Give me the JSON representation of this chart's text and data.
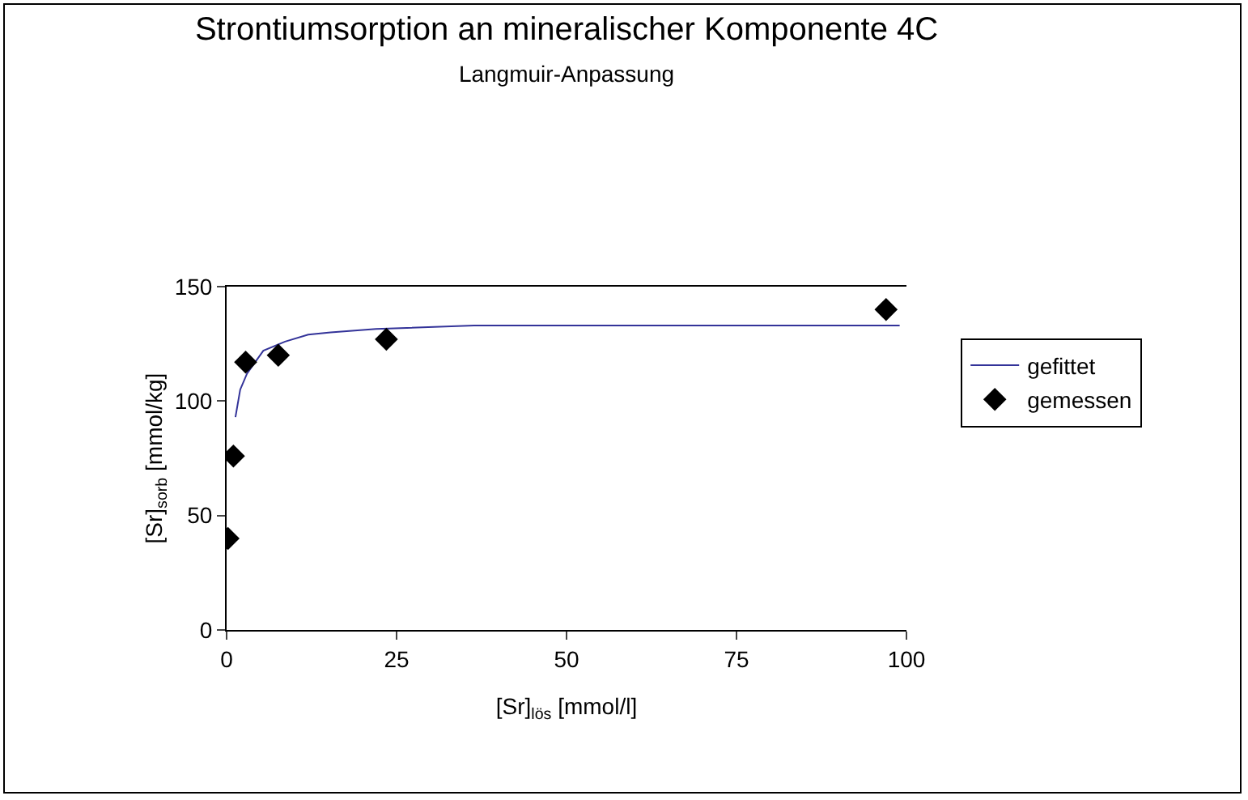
{
  "chart_data": {
    "type": "scatter",
    "title": "Strontiumsorption an mineralischer Komponente 4C",
    "subtitle": "Langmuir-Anpassung",
    "xlabel": "[Sr]$_{lös}$ [mmol/l]",
    "ylabel": "[Sr]$_{sorb}$ [mmol/kg]",
    "xlim": [
      0,
      100
    ],
    "xticks": [
      0,
      25,
      50,
      75,
      100
    ],
    "ylim": [
      0,
      150
    ],
    "yticks": [
      0,
      50,
      100,
      150
    ],
    "grid": false,
    "legend": "right",
    "series": [
      {
        "name": "gefittet",
        "type": "line",
        "color": "#333399",
        "marker": "none",
        "line_style": "solid",
        "x": [
          1.3,
          2,
          3,
          5.4,
          8.6,
          12,
          15.3,
          22,
          36.4,
          99
        ],
        "values": [
          93,
          105,
          112,
          122,
          126,
          129,
          130,
          131.5,
          133,
          133
        ]
      },
      {
        "name": "gemessen",
        "type": "scatter",
        "color": "#000000",
        "marker": "diamond",
        "x": [
          0.2,
          1,
          2.8,
          7.6,
          23.5,
          97
        ],
        "values": [
          40,
          76,
          117,
          120,
          127,
          140
        ]
      }
    ]
  }
}
